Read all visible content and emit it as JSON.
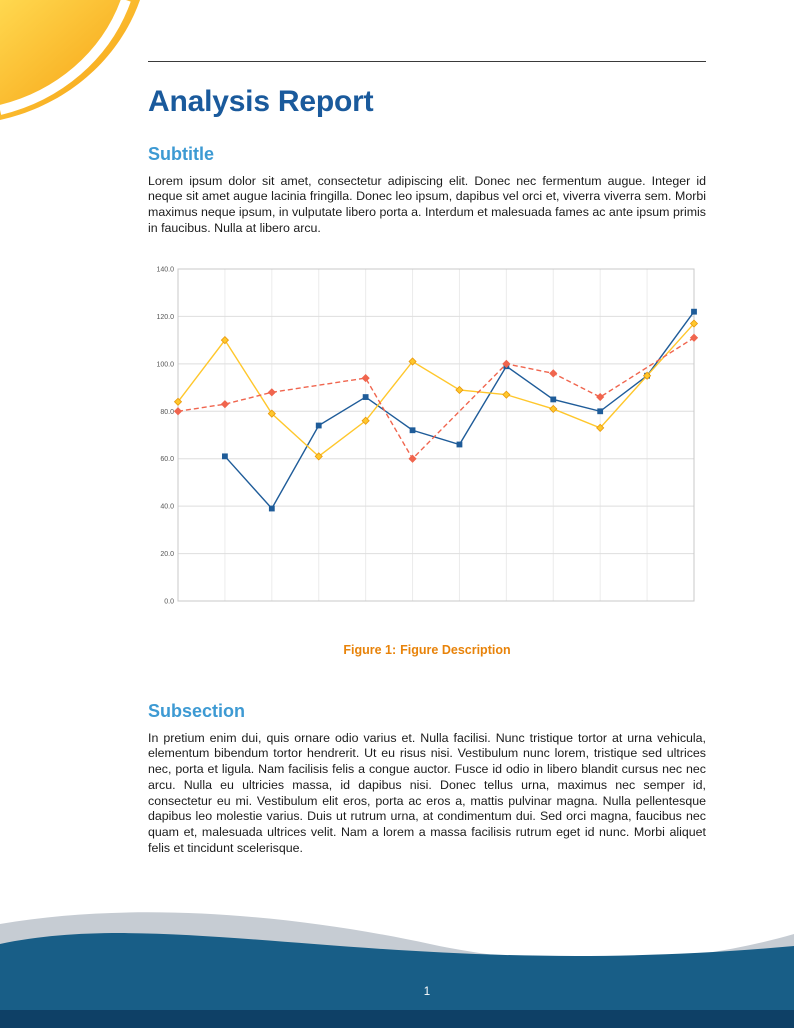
{
  "page": {
    "number": "1"
  },
  "header": {
    "title": "Analysis Report"
  },
  "sections": {
    "subtitle": {
      "heading": "Subtitle",
      "body": "Lorem ipsum dolor sit amet, consectetur adipiscing elit. Donec nec fermentum augue. Integer id neque sit amet augue lacinia fringilla. Donec leo ipsum, dapibus vel orci et, viverra viverra sem. Morbi maximus neque ipsum, in vulputate libero porta a. Interdum et malesuada fames ac ante ipsum primis in faucibus. Nulla at libero arcu."
    },
    "subsection": {
      "heading": "Subsection",
      "body": "In pretium enim dui, quis ornare odio varius et. Nulla facilisi. Nunc tristique tortor at urna vehicula, elementum bibendum tortor hendrerit. Ut eu risus nisi. Vestibulum nunc lorem, tristique sed ultrices nec, porta et ligula. Nam facilisis felis a congue auctor. Fusce id odio in libero blandit cursus nec nec arcu. Nulla eu ultricies massa, id dapibus nisi. Donec tellus urna, maximus nec semper id, consectetur eu mi. Vestibulum elit eros, porta ac eros a, mattis pulvinar magna. Nulla pellentesque dapibus leo molestie varius. Duis ut rutrum urna, at condimentum dui. Sed orci magna, faucibus nec quam et, malesuada ultrices velit. Nam a lorem a massa facilisis rutrum eget id nunc. Morbi aliquet felis et tincidunt scelerisque."
    }
  },
  "figure": {
    "caption_label": "Figure 1:",
    "caption_text": "Figure Description"
  },
  "chart_data": {
    "type": "line",
    "title": "",
    "xlabel": "",
    "ylabel": "",
    "ylim": [
      0,
      140
    ],
    "ytick_labels": [
      "0.0",
      "20.0",
      "40.0",
      "60.0",
      "80.0",
      "100.0",
      "120.0",
      "140.0"
    ],
    "x": [
      1,
      2,
      3,
      4,
      5,
      6,
      7,
      8,
      9,
      10,
      11,
      12
    ],
    "grid": true,
    "legend_position": "none",
    "series": [
      {
        "name": "series-blue",
        "color": "#1f5c99",
        "marker": "square",
        "dash": "",
        "x": [
          2,
          3,
          4,
          5,
          6,
          7,
          8,
          9,
          10,
          11,
          12
        ],
        "values": [
          61,
          39,
          74,
          86,
          72,
          66,
          99,
          85,
          80,
          95,
          122
        ]
      },
      {
        "name": "series-yellow",
        "color": "#ffc72c",
        "marker": "diamond",
        "marker_stroke": "#e8980c",
        "dash": "",
        "x": [
          1,
          2,
          3,
          4,
          5,
          6,
          7,
          8,
          9,
          10,
          11,
          12
        ],
        "values": [
          84,
          110,
          79,
          61,
          76,
          101,
          89,
          87,
          81,
          73,
          95,
          117
        ]
      },
      {
        "name": "series-red",
        "color": "#f0654e",
        "marker": "diamond",
        "dash": "5,3",
        "x": [
          1,
          2,
          3,
          5,
          6,
          8,
          9,
          10,
          12
        ],
        "values": [
          80,
          83,
          88,
          94,
          60,
          100,
          96,
          86,
          111
        ]
      }
    ]
  },
  "colors": {
    "title_blue": "#1a5a9c",
    "heading_blue": "#3d9ad3",
    "caption_orange": "#e8830a",
    "footer_blue": "#185e87",
    "footer_dark": "#0e4066",
    "footer_gray": "#c6ccd3",
    "corner_yellow": "#ffd84f",
    "corner_orange": "#f59b0b"
  }
}
